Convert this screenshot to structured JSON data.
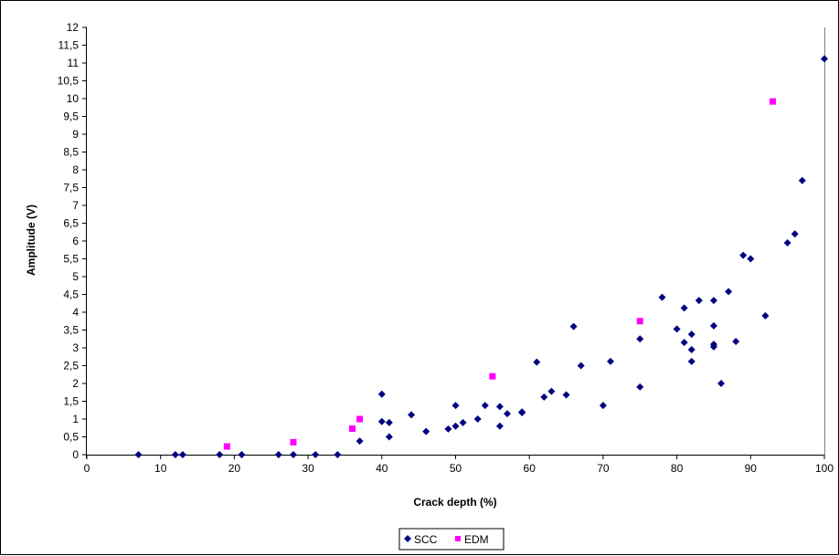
{
  "chart_data": {
    "type": "scatter",
    "title": "",
    "xlabel": "Crack depth (%)",
    "ylabel": "Amplitude (V)",
    "xlim": [
      0,
      100
    ],
    "ylim": [
      0,
      12
    ],
    "x_ticks": [
      "0",
      "10",
      "20",
      "30",
      "40",
      "50",
      "60",
      "70",
      "80",
      "90",
      "100"
    ],
    "y_ticks": [
      "0",
      "0,5",
      "1",
      "1,5",
      "2",
      "2,5",
      "3",
      "3,5",
      "4",
      "4,5",
      "5",
      "5,5",
      "6",
      "6,5",
      "7",
      "7,5",
      "8",
      "8,5",
      "9",
      "9,5",
      "10",
      "10,5",
      "11",
      "11,5",
      "12"
    ],
    "grid": false,
    "legend_position": "bottom",
    "series": [
      {
        "name": "SCC",
        "marker": "diamond",
        "color": "#000080",
        "points": [
          [
            7,
            0
          ],
          [
            12,
            0
          ],
          [
            13,
            0
          ],
          [
            18,
            0
          ],
          [
            21,
            0
          ],
          [
            26,
            0
          ],
          [
            28,
            0
          ],
          [
            31,
            0
          ],
          [
            34,
            0
          ],
          [
            37,
            0.38
          ],
          [
            40,
            1.7
          ],
          [
            40,
            0.93
          ],
          [
            41,
            0.9
          ],
          [
            41,
            0.5
          ],
          [
            44,
            1.12
          ],
          [
            46,
            0.65
          ],
          [
            49,
            0.72
          ],
          [
            50,
            1.38
          ],
          [
            50,
            0.8
          ],
          [
            51,
            0.9
          ],
          [
            53,
            1.0
          ],
          [
            54,
            1.38
          ],
          [
            56,
            1.35
          ],
          [
            56,
            0.8
          ],
          [
            57,
            1.15
          ],
          [
            59,
            1.2
          ],
          [
            59,
            1.18
          ],
          [
            61,
            2.6
          ],
          [
            62,
            1.62
          ],
          [
            63,
            1.78
          ],
          [
            65,
            1.68
          ],
          [
            66,
            3.6
          ],
          [
            67,
            2.5
          ],
          [
            70,
            1.38
          ],
          [
            71,
            2.62
          ],
          [
            75,
            3.25
          ],
          [
            75,
            1.9
          ],
          [
            78,
            4.42
          ],
          [
            80,
            3.53
          ],
          [
            81,
            4.12
          ],
          [
            81,
            3.15
          ],
          [
            82,
            3.38
          ],
          [
            82,
            2.95
          ],
          [
            82,
            2.62
          ],
          [
            83,
            4.33
          ],
          [
            85,
            4.33
          ],
          [
            85,
            3.62
          ],
          [
            85,
            3.1
          ],
          [
            85,
            3.03
          ],
          [
            86,
            2.0
          ],
          [
            87,
            4.58
          ],
          [
            88,
            3.18
          ],
          [
            89,
            5.6
          ],
          [
            90,
            5.5
          ],
          [
            92,
            3.9
          ],
          [
            95,
            5.95
          ],
          [
            96,
            6.2
          ],
          [
            97,
            7.7
          ],
          [
            100,
            11.12
          ]
        ]
      },
      {
        "name": "EDM",
        "marker": "square",
        "color": "#ff00ff",
        "points": [
          [
            19,
            0.23
          ],
          [
            28,
            0.35
          ],
          [
            36,
            0.73
          ],
          [
            37,
            1.0
          ],
          [
            55,
            2.2
          ],
          [
            75,
            3.75
          ],
          [
            93,
            9.92
          ]
        ]
      }
    ]
  }
}
